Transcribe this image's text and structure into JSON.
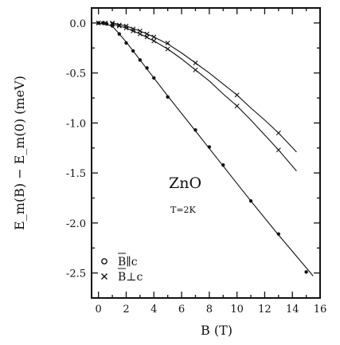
{
  "chart_data": {
    "type": "scatter",
    "xlabel": "B (T)",
    "ylabel": "E_m(B) − E_m(0)  (meV)",
    "xlim": [
      -0.5,
      16
    ],
    "ylim": [
      -2.75,
      0.15
    ],
    "xticks": [
      0,
      2,
      4,
      6,
      8,
      10,
      12,
      14,
      16
    ],
    "yticks": [
      0.0,
      -0.5,
      -1.0,
      -1.5,
      -2.0,
      -2.5
    ],
    "xtick_labels": [
      "0",
      "2",
      "4",
      "6",
      "8",
      "10",
      "12",
      "14",
      "16"
    ],
    "ytick_labels": [
      "0.0",
      "-0.5",
      "-1.0",
      "-1.5",
      "-2.0",
      "-2.5"
    ],
    "annotations": [
      "ZnO",
      "T=2K"
    ],
    "legend": {
      "placement": "bottom-left",
      "entries": [
        {
          "marker": "circle",
          "vector": "B",
          "relation": "∥",
          "axis": "c"
        },
        {
          "marker": "cross",
          "vector": "B",
          "relation": "⊥",
          "axis": "c"
        }
      ]
    },
    "series": [
      {
        "marker": "circle",
        "x": [
          0,
          0.3,
          0.6,
          1.0,
          1.5,
          2.0,
          2.5,
          3.0,
          3.5,
          4.0,
          5.0,
          7.0,
          8.0,
          9.0,
          11.0,
          13.0,
          15.0
        ],
        "y": [
          0.0,
          0.0,
          -0.01,
          -0.03,
          -0.11,
          -0.2,
          -0.28,
          -0.37,
          -0.45,
          -0.55,
          -0.74,
          -1.07,
          -1.24,
          -1.42,
          -1.78,
          -2.11,
          -2.49
        ]
      },
      {
        "marker": "cross",
        "x": [
          0,
          0.5,
          1.0,
          1.5,
          2.0,
          2.5,
          3.0,
          3.5,
          4.0,
          5.0,
          7.0,
          10.0,
          13.0
        ],
        "y": [
          0.0,
          0.0,
          0.0,
          -0.02,
          -0.03,
          -0.06,
          -0.08,
          -0.11,
          -0.14,
          -0.2,
          -0.4,
          -0.72,
          -1.1
        ]
      },
      {
        "marker": "cross",
        "x": [
          0,
          0.5,
          1.0,
          1.5,
          2.0,
          2.5,
          3.0,
          3.5,
          4.0,
          5.0,
          7.0,
          10.0,
          13.0
        ],
        "y": [
          0.0,
          0.0,
          -0.01,
          -0.03,
          -0.05,
          -0.08,
          -0.11,
          -0.14,
          -0.18,
          -0.26,
          -0.47,
          -0.83,
          -1.27
        ]
      }
    ],
    "fit_lines": [
      {
        "x": [
          0,
          1,
          2,
          3,
          4,
          5,
          7,
          9,
          11,
          13,
          15.5
        ],
        "y": [
          0.0,
          -0.03,
          -0.19,
          -0.37,
          -0.55,
          -0.73,
          -1.08,
          -1.43,
          -1.78,
          -2.12,
          -2.53
        ]
      },
      {
        "x": [
          1,
          2,
          3,
          4,
          5,
          6,
          7,
          8,
          9,
          10,
          11,
          12,
          13,
          14.3
        ],
        "y": [
          0.0,
          -0.03,
          -0.08,
          -0.14,
          -0.21,
          -0.3,
          -0.4,
          -0.5,
          -0.61,
          -0.72,
          -0.85,
          -0.97,
          -1.1,
          -1.29
        ]
      },
      {
        "x": [
          1,
          2,
          3,
          4,
          5,
          6,
          7,
          8,
          9,
          10,
          11,
          12,
          13,
          14.3
        ],
        "y": [
          -0.01,
          -0.05,
          -0.11,
          -0.18,
          -0.26,
          -0.36,
          -0.47,
          -0.58,
          -0.71,
          -0.83,
          -0.97,
          -1.12,
          -1.27,
          -1.48
        ]
      }
    ]
  }
}
